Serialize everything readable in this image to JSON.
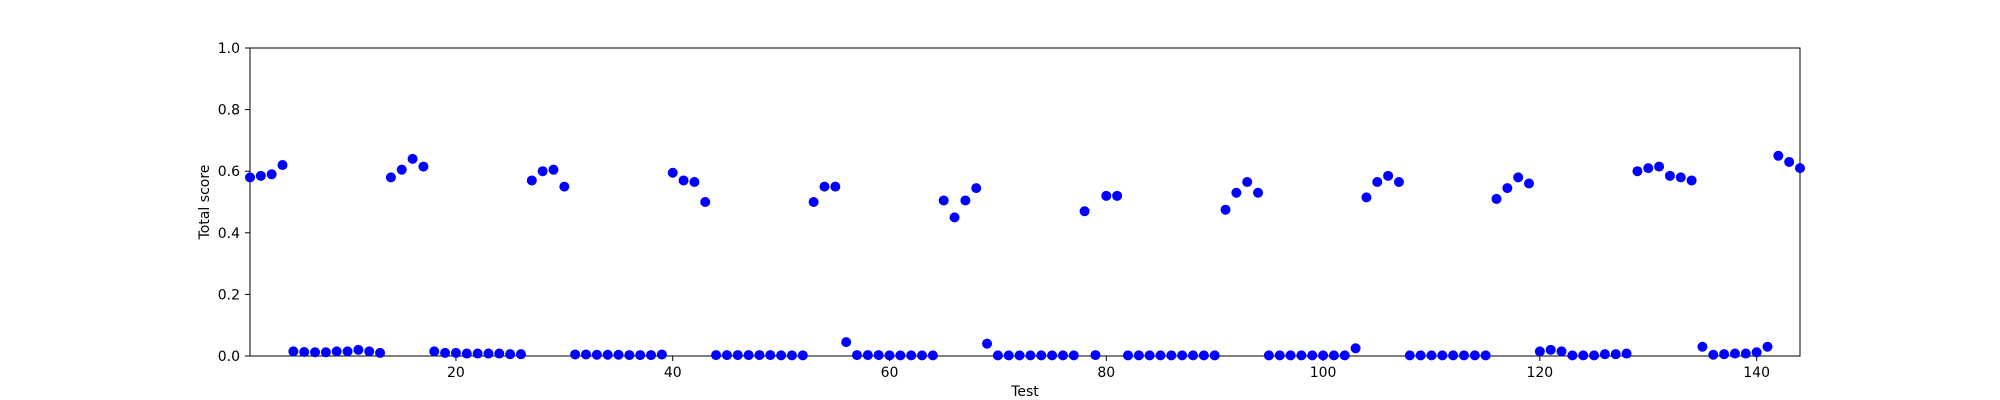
{
  "chart_data": {
    "type": "scatter",
    "xlabel": "Test",
    "ylabel": "Total score",
    "xlim": [
      1,
      144
    ],
    "ylim": [
      0.0,
      1.0
    ],
    "x_ticks": [
      20,
      40,
      60,
      80,
      100,
      120,
      140
    ],
    "y_ticks": [
      0.0,
      0.2,
      0.4,
      0.6,
      0.8,
      1.0
    ],
    "y_tick_labels": [
      "0.0",
      "0.2",
      "0.4",
      "0.6",
      "0.8",
      "1.0"
    ],
    "grid": false,
    "marker_color": "#0000ff",
    "series": [
      {
        "x": [
          1,
          2,
          3,
          4,
          5,
          6,
          7,
          8,
          9,
          10,
          11,
          12,
          13,
          14,
          15,
          16,
          17,
          18,
          19,
          20,
          21,
          22,
          23,
          24,
          25,
          26,
          27,
          28,
          29,
          30,
          31,
          32,
          33,
          34,
          35,
          36,
          37,
          38,
          39,
          40,
          41,
          42,
          43,
          44,
          45,
          46,
          47,
          48,
          49,
          50,
          51,
          52,
          53,
          54,
          55,
          56,
          57,
          58,
          59,
          60,
          61,
          62,
          63,
          64,
          65,
          66,
          67,
          68,
          69,
          70,
          71,
          72,
          73,
          74,
          75,
          76,
          77,
          78,
          79,
          80,
          81,
          82,
          83,
          84,
          85,
          86,
          87,
          88,
          89,
          90,
          91,
          92,
          93,
          94,
          95,
          96,
          97,
          98,
          99,
          100,
          101,
          102,
          103,
          104,
          105,
          106,
          107,
          108,
          109,
          110,
          111,
          112,
          113,
          114,
          115,
          116,
          117,
          118,
          119,
          120,
          121,
          122,
          123,
          124,
          125,
          126,
          127,
          128,
          129,
          130,
          131,
          132,
          133,
          134,
          135,
          136,
          137,
          138,
          139,
          140,
          141,
          142,
          143,
          144
        ],
        "y": [
          0.58,
          0.585,
          0.59,
          0.62,
          0.015,
          0.013,
          0.012,
          0.012,
          0.015,
          0.015,
          0.02,
          0.015,
          0.01,
          0.58,
          0.605,
          0.64,
          0.615,
          0.015,
          0.01,
          0.01,
          0.008,
          0.008,
          0.008,
          0.008,
          0.006,
          0.006,
          0.57,
          0.6,
          0.605,
          0.55,
          0.005,
          0.005,
          0.004,
          0.004,
          0.004,
          0.003,
          0.003,
          0.003,
          0.005,
          0.595,
          0.57,
          0.565,
          0.5,
          0.003,
          0.003,
          0.003,
          0.003,
          0.003,
          0.003,
          0.002,
          0.002,
          0.002,
          0.5,
          0.55,
          0.55,
          0.045,
          0.003,
          0.003,
          0.003,
          0.002,
          0.002,
          0.002,
          0.002,
          0.002,
          0.505,
          0.45,
          0.505,
          0.545,
          0.04,
          0.002,
          0.002,
          0.002,
          0.002,
          0.002,
          0.002,
          0.002,
          0.002,
          0.47,
          0.003,
          0.52,
          0.52,
          0.002,
          0.002,
          0.002,
          0.002,
          0.002,
          0.002,
          0.002,
          0.002,
          0.002,
          0.475,
          0.53,
          0.565,
          0.53,
          0.002,
          0.002,
          0.002,
          0.002,
          0.002,
          0.002,
          0.002,
          0.002,
          0.025,
          0.515,
          0.565,
          0.585,
          0.565,
          0.002,
          0.002,
          0.002,
          0.002,
          0.002,
          0.002,
          0.002,
          0.002,
          0.51,
          0.545,
          0.58,
          0.56,
          0.015,
          0.02,
          0.015,
          0.002,
          0.002,
          0.002,
          0.006,
          0.006,
          0.008,
          0.6,
          0.61,
          0.615,
          0.585,
          0.58,
          0.57,
          0.03,
          0.004,
          0.006,
          0.008,
          0.008,
          0.012,
          0.03,
          0.65,
          0.63,
          0.61
        ]
      }
    ]
  }
}
